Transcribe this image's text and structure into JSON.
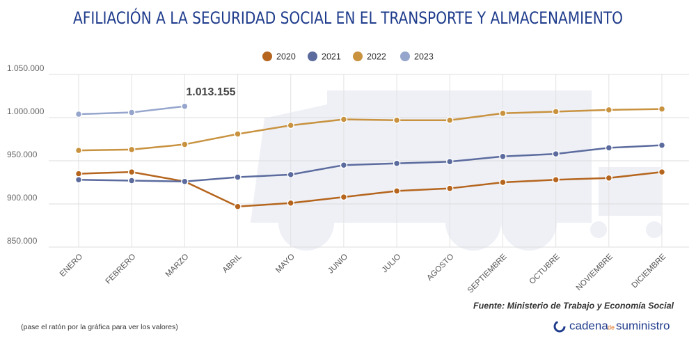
{
  "chart_data": {
    "type": "line",
    "title": "AFILIACIÓN A LA SEGURIDAD SOCIAL EN EL TRANSPORTE Y ALMACENAMIENTO",
    "categories": [
      "ENERO",
      "FEBRERO",
      "MARZO",
      "ABRIL",
      "MAYO",
      "JUNIO",
      "JULIO",
      "AGOSTO",
      "SEPTIEMBRE",
      "OCTUBRE",
      "NOVIEMBRE",
      "DICIEMBRE"
    ],
    "series": [
      {
        "name": "2020",
        "color": "#b5651d",
        "values": [
          935000,
          937000,
          926000,
          897000,
          901000,
          908000,
          915000,
          918000,
          925000,
          928000,
          930000,
          937000
        ]
      },
      {
        "name": "2021",
        "color": "#5b6b9e",
        "values": [
          928000,
          927000,
          926000,
          931000,
          934000,
          945000,
          947000,
          949000,
          955000,
          958000,
          965000,
          968000
        ]
      },
      {
        "name": "2022",
        "color": "#c8923f",
        "values": [
          962000,
          963000,
          969000,
          981000,
          991000,
          998000,
          997000,
          997000,
          1005000,
          1007000,
          1009000,
          1010000
        ]
      },
      {
        "name": "2023",
        "color": "#95a5cc",
        "values": [
          1004000,
          1006000,
          1013155,
          null,
          null,
          null,
          null,
          null,
          null,
          null,
          null,
          null
        ],
        "value_labels": [
          null,
          null,
          "1.013.155",
          null,
          null,
          null,
          null,
          null,
          null,
          null,
          null,
          null
        ]
      }
    ],
    "ylim": [
      850000,
      1050000
    ],
    "yticks": [
      {
        "value": 850000,
        "label": "850.000"
      },
      {
        "value": 900000,
        "label": "900.000"
      },
      {
        "value": 950000,
        "label": "950.000"
      },
      {
        "value": 1000000,
        "label": "1.000.000"
      },
      {
        "value": 1050000,
        "label": "1.050.000"
      }
    ],
    "grid": true,
    "legend": "top",
    "source": "Fuente: Ministerio de Trabajo y Economía Social",
    "note": "(pase el ratón por la gráfica para ver los valores)",
    "logo": [
      "cadena",
      "de",
      "suministro"
    ]
  }
}
